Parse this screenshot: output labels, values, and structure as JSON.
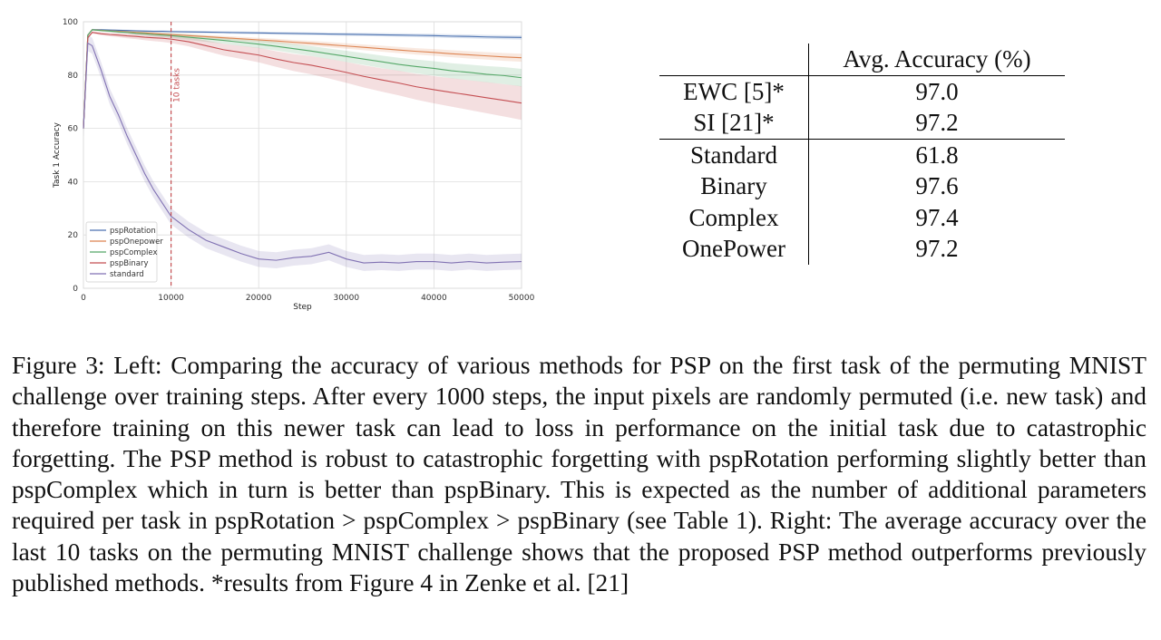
{
  "chart_data": {
    "type": "line",
    "xlabel": "Step",
    "ylabel": "Task 1 Accuracy",
    "xlim": [
      0,
      50000
    ],
    "ylim": [
      0,
      100
    ],
    "xticks": [
      0,
      10000,
      20000,
      30000,
      40000,
      50000
    ],
    "yticks": [
      0,
      20,
      40,
      60,
      80,
      100
    ],
    "grid": true,
    "legend_position": "lower-left",
    "vline": {
      "x": 10000,
      "label": "10 tasks",
      "color": "#c44e52"
    },
    "x": [
      0,
      500,
      1000,
      2000,
      3000,
      4000,
      5000,
      6000,
      7000,
      8000,
      9000,
      10000,
      12000,
      14000,
      16000,
      18000,
      20000,
      22000,
      24000,
      26000,
      28000,
      30000,
      32000,
      34000,
      36000,
      38000,
      40000,
      42000,
      44000,
      46000,
      48000,
      50000
    ],
    "series": [
      {
        "name": "pspRotation",
        "color": "#4c72b0",
        "values": [
          60,
          95,
          97,
          97,
          96.9,
          96.8,
          96.7,
          96.6,
          96.5,
          96.4,
          96.4,
          96.3,
          96.2,
          96.1,
          96.0,
          95.9,
          95.8,
          95.7,
          95.6,
          95.5,
          95.4,
          95.3,
          95.2,
          95.1,
          95.0,
          94.9,
          94.8,
          94.6,
          94.5,
          94.3,
          94.2,
          94.1
        ]
      },
      {
        "name": "pspOnepower",
        "color": "#dd8452",
        "values": [
          60,
          95,
          97,
          96.8,
          96.6,
          96.4,
          96.2,
          96.0,
          95.8,
          95.6,
          95.4,
          95.2,
          94.8,
          94.4,
          94.0,
          93.6,
          93.2,
          92.8,
          92.3,
          91.9,
          91.4,
          90.9,
          90.4,
          89.9,
          89.4,
          88.9,
          88.5,
          88.0,
          87.6,
          87.2,
          86.8,
          86.5
        ]
      },
      {
        "name": "pspComplex",
        "color": "#55a868",
        "values": [
          60,
          95,
          97,
          96.7,
          96.5,
          96.2,
          96.0,
          95.7,
          95.5,
          95.2,
          95.0,
          94.8,
          94.2,
          93.6,
          93.0,
          92.3,
          91.6,
          90.8,
          89.9,
          89.0,
          88.0,
          87.0,
          86.0,
          85.0,
          84.0,
          83.2,
          82.5,
          81.6,
          81.0,
          80.3,
          79.8,
          79.0
        ]
      },
      {
        "name": "pspBinary",
        "color": "#c44e52",
        "values": [
          60,
          94,
          96,
          95.5,
          95.2,
          95.0,
          94.7,
          94.5,
          94.2,
          94.0,
          93.8,
          93.5,
          92.5,
          91.0,
          89.5,
          88.5,
          87.5,
          86.0,
          84.7,
          83.7,
          82.4,
          81.0,
          79.5,
          78.2,
          77.0,
          75.6,
          74.5,
          73.5,
          72.5,
          71.5,
          70.5,
          69.5
        ]
      },
      {
        "name": "standard",
        "color": "#8172b3",
        "values": [
          60,
          92,
          91,
          82,
          72,
          65,
          57,
          50,
          43,
          37,
          32,
          27,
          22,
          18,
          15.5,
          13,
          11,
          10.5,
          11.5,
          12,
          13.5,
          11,
          9.5,
          9.8,
          9.5,
          10,
          10,
          9.5,
          10,
          9.5,
          9.8,
          10
        ]
      }
    ]
  },
  "table": {
    "header": [
      "",
      "Avg. Accuracy (%)"
    ],
    "group1": [
      {
        "method": "EWC [5]*",
        "value": "97.0"
      },
      {
        "method": "SI [21]*",
        "value": "97.2"
      }
    ],
    "group2": [
      {
        "method": "Standard",
        "value": "61.8"
      },
      {
        "method": "Binary",
        "value": "97.6"
      },
      {
        "method": "Complex",
        "value": "97.4"
      },
      {
        "method": "OnePower",
        "value": "97.2"
      }
    ]
  },
  "caption": "Figure 3: Left: Comparing the accuracy of various methods for PSP on the first task of the permuting MNIST challenge over training steps. After every 1000 steps, the input pixels are randomly permuted (i.e. new task) and therefore training on this newer task can lead to loss in performance on the initial task due to catastrophic forgetting. The PSP method is robust to catastrophic forgetting with pspRotation performing slightly better than pspComplex which in turn is better than pspBinary. This is expected as the number of additional parameters required per task in pspRotation > pspComplex > pspBinary (see Table 1). Right: The average accuracy over the last 10 tasks on the permuting MNIST challenge shows that the proposed PSP method outperforms previously published methods. *results from Figure 4 in Zenke et al. [21]"
}
